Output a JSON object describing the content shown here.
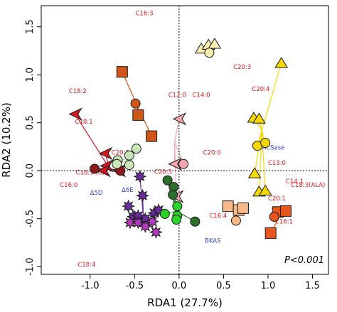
{
  "chart_data": {
    "type": "scatter",
    "xlabel": "RDA1 (27.7%)",
    "ylabel": "RDA2 (10.2%)",
    "xlim": [
      -1.55,
      1.68
    ],
    "ylim": [
      -1.08,
      1.72
    ],
    "xticks": [
      -1.0,
      -0.5,
      0.0,
      0.5,
      1.0,
      1.5
    ],
    "yticks": [
      -1.0,
      -0.5,
      0.0,
      0.5,
      1.0,
      1.5
    ],
    "xtick_labels": [
      "-1.0",
      "-0.5",
      "0.0",
      "0.5",
      "1.0",
      "1.5"
    ],
    "ytick_labels": [
      "-1.0",
      "-0.5",
      "0.0",
      "0.5",
      "1.0",
      "1.5"
    ],
    "grid": false,
    "reference_lines": {
      "x": 0,
      "y": 0,
      "style": "dotted"
    },
    "annotation": "P<0.001",
    "colors": {
      "fatty_acid_label": "#e8141b",
      "enzyme_label": "#2f3fd1",
      "frame": "#000000"
    },
    "fatty_acid_labels": [
      {
        "text": "C16:3",
        "x": -0.39,
        "y": 1.62
      },
      {
        "text": "C18:2",
        "x": -1.14,
        "y": 0.81
      },
      {
        "text": "C18:1",
        "x": -1.07,
        "y": 0.49
      },
      {
        "text": "C20:2",
        "x": -0.66,
        "y": 0.17
      },
      {
        "text": "C18:3 (C)",
        "x": -1.0,
        "y": -0.04
      },
      {
        "text": "C16:0",
        "x": -1.24,
        "y": -0.17
      },
      {
        "text": "C20:5",
        "x": -0.18,
        "y": -0.03
      },
      {
        "text": "C12:0",
        "x": -0.02,
        "y": 0.77
      },
      {
        "text": "C14:0",
        "x": 0.25,
        "y": 0.77
      },
      {
        "text": "C20:0",
        "x": 0.37,
        "y": 0.17
      },
      {
        "text": "C20:3",
        "x": 0.71,
        "y": 1.06
      },
      {
        "text": "C20:4",
        "x": 0.92,
        "y": 0.83
      },
      {
        "text": "C13:0",
        "x": 1.1,
        "y": 0.06
      },
      {
        "text": "C14:1",
        "x": 1.3,
        "y": -0.13
      },
      {
        "text": "C18:3(ALA)",
        "x": 1.45,
        "y": -0.17
      },
      {
        "text": "C20:1",
        "x": 1.1,
        "y": -0.31
      },
      {
        "text": "C16:4",
        "x": 0.44,
        "y": -0.49
      },
      {
        "text": "C16:1",
        "x": 1.18,
        "y": -0.55
      },
      {
        "text": "C18:4",
        "x": -1.04,
        "y": -1.0
      }
    ],
    "enzyme_labels": [
      {
        "text": "ACSase",
        "x": 1.06,
        "y": 0.22
      },
      {
        "text": "Δ5D",
        "x": -0.93,
        "y": -0.25
      },
      {
        "text": "Δ6E",
        "x": -0.58,
        "y": -0.22
      },
      {
        "text": "BKAS",
        "x": 0.38,
        "y": -0.75
      }
    ],
    "series": [
      {
        "group": "red-arrowheads",
        "shape": "arrowhead",
        "color": "#d41720",
        "hub": [
          -0.78,
          0.02
        ],
        "points": [
          [
            -1.17,
            0.59
          ],
          [
            -0.82,
            0.05
          ],
          [
            -0.83,
            0.18
          ],
          [
            -0.85,
            0.0
          ],
          [
            -0.68,
            0.0
          ]
        ]
      },
      {
        "group": "dark-red-circles",
        "shape": "circle",
        "color": "#8c1a1a",
        "hub": [
          -0.78,
          0.02
        ],
        "points": [
          [
            -0.95,
            0.02
          ],
          [
            -0.66,
            0.0
          ]
        ]
      },
      {
        "group": "orange-squares",
        "shape": "square",
        "color": "#cf5518",
        "hub": [
          -0.47,
          0.68
        ],
        "points": [
          [
            -0.64,
            1.03
          ],
          [
            -0.46,
            0.58
          ],
          [
            -0.31,
            0.36
          ]
        ]
      },
      {
        "group": "orange-circles",
        "shape": "circle",
        "color": "#cf5518",
        "hub": [
          -0.47,
          0.68
        ],
        "points": [
          [
            -0.49,
            0.7
          ]
        ]
      },
      {
        "group": "pale-green-circles",
        "shape": "circle",
        "color": "#c8e6b5",
        "hub": [
          -0.55,
          0.12
        ],
        "points": [
          [
            -0.69,
            0.11
          ],
          [
            -0.56,
            0.16
          ],
          [
            -0.48,
            0.23
          ],
          [
            -0.56,
            0.06
          ],
          [
            -0.7,
            0.07
          ]
        ]
      },
      {
        "group": "purple-stars",
        "shape": "star",
        "color": "#6a2c9e",
        "hub": [
          -0.4,
          -0.5
        ],
        "points": [
          [
            -0.44,
            -0.06
          ],
          [
            -0.41,
            -0.26
          ],
          [
            -0.57,
            -0.37
          ],
          [
            -0.52,
            -0.48
          ],
          [
            -0.46,
            -0.47
          ],
          [
            -0.38,
            -0.5
          ],
          [
            -0.28,
            -0.44
          ],
          [
            -0.23,
            -0.41
          ]
        ]
      },
      {
        "group": "magenta-stars",
        "shape": "star",
        "color": "#b23bbd",
        "hub": [
          -0.4,
          -0.5
        ],
        "points": [
          [
            -0.55,
            -0.54
          ],
          [
            -0.46,
            -0.54
          ],
          [
            -0.38,
            -0.58
          ],
          [
            -0.3,
            -0.53
          ],
          [
            -0.26,
            -0.64
          ]
        ]
      },
      {
        "group": "pink-arrowheads",
        "shape": "arrowhead",
        "color": "#f3a6b0",
        "hub": [
          -0.05,
          0.3
        ],
        "points": [
          [
            0.0,
            0.54
          ],
          [
            -0.05,
            0.07
          ],
          [
            -0.03,
            -0.27
          ]
        ]
      },
      {
        "group": "pink-circles",
        "shape": "circle",
        "color": "#f3a6b0",
        "hub": [
          -0.05,
          0.3
        ],
        "points": [
          [
            0.05,
            0.07
          ]
        ]
      },
      {
        "group": "dark-green-circles",
        "shape": "circle",
        "color": "#2c6e2a",
        "hub": [
          -0.03,
          -0.42
        ],
        "points": [
          [
            -0.13,
            -0.1
          ],
          [
            -0.06,
            -0.17
          ],
          [
            -0.07,
            -0.25
          ],
          [
            0.18,
            -0.53
          ]
        ]
      },
      {
        "group": "bright-green-circles",
        "shape": "circle",
        "color": "#2cd12a",
        "hub": [
          -0.03,
          -0.42
        ],
        "points": [
          [
            -0.16,
            -0.45
          ],
          [
            -0.02,
            -0.37
          ],
          [
            -0.02,
            -0.47
          ],
          [
            -0.03,
            -0.51
          ]
        ]
      },
      {
        "group": "light-yellow-triangles",
        "shape": "triangle",
        "color": "#f7eeb0",
        "hub": [
          0.37,
          1.26
        ],
        "points": [
          [
            0.25,
            1.27
          ],
          [
            0.33,
            1.31
          ],
          [
            0.4,
            1.32
          ]
        ]
      },
      {
        "group": "light-yellow-circles",
        "shape": "circle",
        "color": "#f7eeb0",
        "hub": [
          0.37,
          1.26
        ],
        "points": [
          [
            0.34,
            1.23
          ]
        ]
      },
      {
        "group": "yellow-triangles",
        "shape": "triangle",
        "color": "#f5d800",
        "hub": [
          0.93,
          0.42
        ],
        "points": [
          [
            1.15,
            1.12
          ],
          [
            0.84,
            0.55
          ],
          [
            0.9,
            0.54
          ],
          [
            0.85,
            -0.03
          ],
          [
            0.9,
            -0.22
          ],
          [
            0.97,
            -0.21
          ]
        ]
      },
      {
        "group": "yellow-circles",
        "shape": "circle",
        "color": "#f5d800",
        "hub": [
          0.93,
          0.42
        ],
        "points": [
          [
            0.88,
            0.26
          ],
          [
            0.97,
            0.29
          ]
        ]
      },
      {
        "group": "peach-squares",
        "shape": "square",
        "color": "#f7b98a",
        "hub": [
          0.6,
          -0.4
        ],
        "points": [
          [
            0.55,
            -0.37
          ],
          [
            0.67,
            -0.41
          ],
          [
            0.72,
            -0.39
          ]
        ]
      },
      {
        "group": "peach-circles",
        "shape": "circle",
        "color": "#f7b98a",
        "hub": [
          0.6,
          -0.4
        ],
        "points": [
          [
            0.64,
            -0.52
          ]
        ]
      },
      {
        "group": "orange-red-squares",
        "shape": "square",
        "color": "#e8561c",
        "hub": [
          1.14,
          -0.46
        ],
        "points": [
          [
            1.11,
            -0.43
          ],
          [
            1.2,
            -0.42
          ],
          [
            1.03,
            -0.65
          ]
        ]
      },
      {
        "group": "orange-red-circles",
        "shape": "circle",
        "color": "#e8561c",
        "hub": [
          1.14,
          -0.46
        ],
        "points": [
          [
            1.07,
            -0.48
          ]
        ]
      }
    ]
  }
}
